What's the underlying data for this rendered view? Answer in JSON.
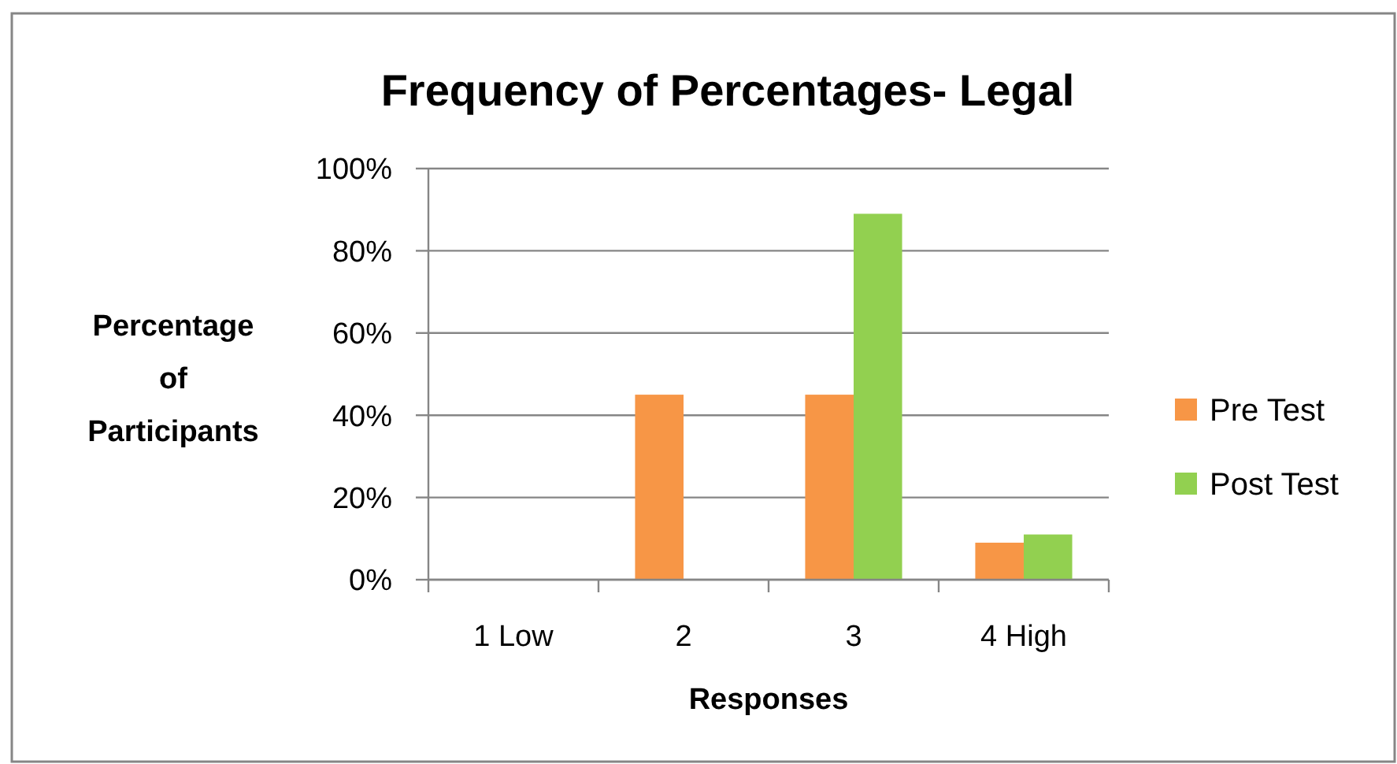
{
  "chart_data": {
    "type": "bar",
    "title": "Frequency of Percentages- Legal",
    "xlabel": "Responses",
    "ylabel": "Percentage\nof\nParticipants",
    "categories": [
      "1 Low",
      "2",
      "3",
      "4 High"
    ],
    "series": [
      {
        "name": "Pre Test",
        "color": "#f79646",
        "values": [
          0,
          45,
          45,
          9
        ]
      },
      {
        "name": "Post Test",
        "color": "#92d050",
        "values": [
          0,
          0,
          89,
          11
        ]
      }
    ],
    "ylim": [
      0,
      100
    ],
    "yticks": [
      {
        "value": 0,
        "label": "0%"
      },
      {
        "value": 20,
        "label": "20%"
      },
      {
        "value": 40,
        "label": "40%"
      },
      {
        "value": 60,
        "label": "60%"
      },
      {
        "value": 80,
        "label": "80%"
      },
      {
        "value": 100,
        "label": "100%"
      }
    ],
    "grid": "y",
    "legend": "right"
  }
}
